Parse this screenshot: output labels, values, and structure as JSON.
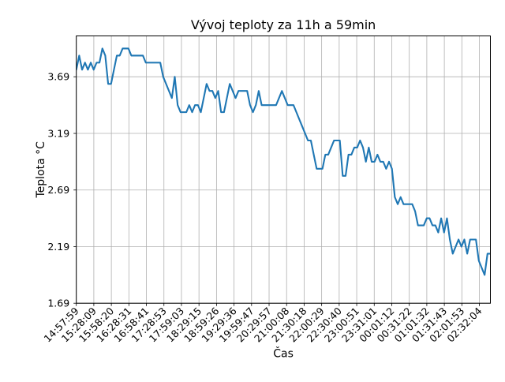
{
  "chart_data": {
    "type": "line",
    "title": "Vývoj teploty za 11h a 59min",
    "xlabel": "Čas",
    "ylabel": "Teplota °C",
    "grid": true,
    "legend_position": "none",
    "line_color": "#1f77b4",
    "grid_color": "#b0b0b0",
    "axis_color": "#000000",
    "background_color": "#ffffff",
    "ylim": [
      1.69,
      4.05
    ],
    "y_ticks": [
      3.69,
      3.19,
      2.69,
      2.19,
      1.69
    ],
    "y_tick_labels": [
      "3.69",
      "3.19",
      "2.69",
      "2.19",
      "1.69"
    ],
    "x_tick_labels": [
      "14:57:59",
      "15:28:09",
      "15:58:20",
      "16:28:31",
      "16:58:41",
      "17:28:53",
      "17:59:03",
      "18:29:15",
      "18:59:26",
      "19:29:36",
      "19:59:47",
      "20:29:57",
      "21:00:08",
      "21:30:18",
      "22:00:29",
      "22:30:40",
      "23:00:51",
      "23:31:01",
      "00:01:12",
      "00:31:22",
      "01:01:32",
      "01:31:43",
      "02:01:53",
      "02:32:04"
    ],
    "series": [
      {
        "name": "teplota",
        "values": [
          3.7525,
          3.8775,
          3.7525,
          3.815,
          3.7525,
          3.815,
          3.7525,
          3.815,
          3.815,
          3.94,
          3.8775,
          3.6275,
          3.6275,
          3.7525,
          3.8775,
          3.8775,
          3.94,
          3.94,
          3.94,
          3.8775,
          3.8775,
          3.8775,
          3.8775,
          3.8775,
          3.815,
          3.815,
          3.815,
          3.815,
          3.815,
          3.815,
          3.69,
          3.6275,
          3.565,
          3.5025,
          3.69,
          3.44,
          3.3775,
          3.3775,
          3.3775,
          3.44,
          3.3775,
          3.44,
          3.44,
          3.3775,
          3.5025,
          3.6275,
          3.565,
          3.565,
          3.5025,
          3.565,
          3.3775,
          3.3775,
          3.5025,
          3.6275,
          3.565,
          3.5025,
          3.565,
          3.565,
          3.565,
          3.565,
          3.44,
          3.3775,
          3.44,
          3.565,
          3.44,
          3.44,
          3.44,
          3.44,
          3.44,
          3.44,
          3.5025,
          3.565,
          3.5025,
          3.44,
          3.44,
          3.44,
          3.3775,
          3.315,
          3.2525,
          3.19,
          3.1275,
          3.1275,
          3.0025,
          2.8775,
          2.8775,
          2.8775,
          3.0025,
          3.0025,
          3.065,
          3.1275,
          3.1275,
          3.1275,
          2.815,
          2.815,
          3.0025,
          3.0025,
          3.065,
          3.065,
          3.1275,
          3.065,
          2.94,
          3.065,
          2.94,
          2.94,
          3.0025,
          2.94,
          2.94,
          2.8775,
          2.94,
          2.8775,
          2.6275,
          2.565,
          2.6275,
          2.565,
          2.565,
          2.565,
          2.565,
          2.5025,
          2.3775,
          2.3775,
          2.3775,
          2.44,
          2.44,
          2.3775,
          2.3775,
          2.315,
          2.44,
          2.315,
          2.44,
          2.2525,
          2.1275,
          2.19,
          2.2525,
          2.19,
          2.2525,
          2.1275,
          2.2525,
          2.2525,
          2.2525,
          2.065,
          2.0025,
          1.94,
          2.1275,
          2.1275
        ]
      }
    ]
  }
}
